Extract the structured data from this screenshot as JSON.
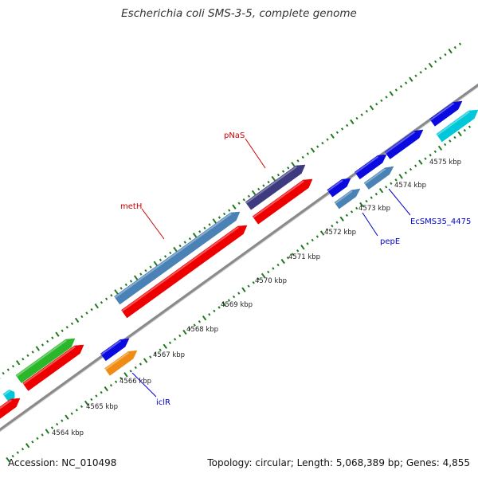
{
  "title": "Escherichia coli SMS-3-5, complete genome",
  "footer": {
    "accession": "Accession: NC_010498",
    "summary": "Topology: circular; Length: 5,068,389 bp; Genes: 4,855"
  },
  "colors": {
    "backbone": "#8a8a8a",
    "tick": "#1f7a1f",
    "label_red": "#cc0000",
    "label_blue": "#0000cc"
  },
  "scale_labels": [
    "4564 kbp",
    "4565 kbp",
    "4566 kbp",
    "4567 kbp",
    "4568 kbp",
    "4569 kbp",
    "4570 kbp",
    "4571 kbp",
    "4572 kbp",
    "4573 kbp",
    "4574 kbp",
    "4575 kbp"
  ],
  "genes": [
    {
      "color": "#00c8d8",
      "track": "outer"
    },
    {
      "color": "#2ab82a",
      "track": "outer"
    },
    {
      "color": "#4a82b6",
      "track": "outer",
      "label": "metH"
    },
    {
      "color": "#3e3a80",
      "track": "outer",
      "label": "pNaS"
    },
    {
      "color": "#0a0ae0",
      "track": "outer"
    },
    {
      "color": "#0a0ae0",
      "track": "outer"
    },
    {
      "color": "#0a0ae0",
      "track": "outer"
    },
    {
      "color": "#0a0ae0",
      "track": "outer"
    },
    {
      "color": "#ee0000",
      "track": "inner"
    },
    {
      "color": "#ee0000",
      "track": "inner"
    },
    {
      "color": "#ee0000",
      "track": "inner"
    },
    {
      "color": "#ee0000",
      "track": "inner"
    },
    {
      "color": "#0a0ae0",
      "track": "inner"
    },
    {
      "color": "#f08c14",
      "track": "inner",
      "label": "iclR"
    },
    {
      "color": "#4a82b6",
      "track": "inner",
      "label": "pepE"
    },
    {
      "color": "#4a82b6",
      "track": "inner",
      "label": "EcSMS35_4475"
    },
    {
      "color": "#00c8d8",
      "track": "inner"
    }
  ]
}
